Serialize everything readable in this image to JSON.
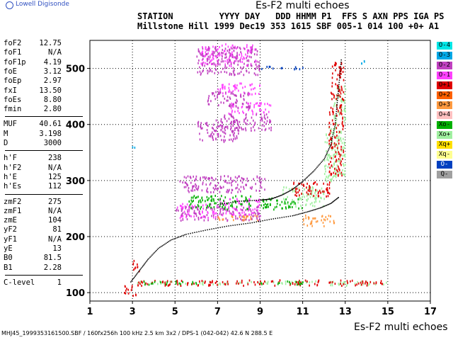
{
  "logo": {
    "text": "Lowell Digisonde"
  },
  "title": "Es-F2 multi echoes",
  "header": {
    "line1": "STATION         YYYY DAY   DDD HHMM P1  FFS S AXN PPS IGA PS",
    "line2": "Millstone Hill 1999 Dec19 353 1615 SBF 005-1 014 100 +0+ A1"
  },
  "parameters": [
    [
      {
        "k": "foF2",
        "v": "12.75"
      },
      {
        "k": "foF1",
        "v": "N/A"
      },
      {
        "k": "foF1p",
        "v": "4.19"
      },
      {
        "k": "foE",
        "v": "3.12"
      },
      {
        "k": "foEp",
        "v": "2.97"
      },
      {
        "k": "fxI",
        "v": "13.50"
      },
      {
        "k": "foEs",
        "v": "8.80"
      },
      {
        "k": "fmin",
        "v": "2.80"
      }
    ],
    [
      {
        "k": "MUF",
        "v": "40.61"
      },
      {
        "k": "M",
        "v": "3.198"
      },
      {
        "k": "D",
        "v": "3000"
      }
    ],
    [
      {
        "k": "h'F",
        "v": "238"
      },
      {
        "k": "h'F2",
        "v": "N/A"
      },
      {
        "k": "h'E",
        "v": "125"
      },
      {
        "k": "h'Es",
        "v": "112"
      }
    ],
    [
      {
        "k": "zmF2",
        "v": "275"
      },
      {
        "k": "zmF1",
        "v": "N/A"
      },
      {
        "k": "zmE",
        "v": "104"
      },
      {
        "k": "yF2",
        "v": "81"
      },
      {
        "k": "yF1",
        "v": "N/A"
      },
      {
        "k": "yE",
        "v": "13"
      },
      {
        "k": "B0",
        "v": "81.5"
      },
      {
        "k": "B1",
        "v": "2.28"
      }
    ],
    [
      {
        "k": "C-level",
        "v": "1"
      }
    ]
  ],
  "legend": [
    {
      "label": "O-4",
      "color": "#00e6e6"
    },
    {
      "label": "O-3",
      "color": "#00a8e6"
    },
    {
      "label": "O-2",
      "color": "#c040c0"
    },
    {
      "label": "O-1",
      "color": "#ff40ff"
    },
    {
      "label": "O+1",
      "color": "#e00000"
    },
    {
      "label": "O+2",
      "color": "#ff6000"
    },
    {
      "label": "O+3",
      "color": "#ff9a40"
    },
    {
      "label": "O+4",
      "color": "#ffc0c0"
    },
    {
      "label": "Xo-",
      "color": "#00b000"
    },
    {
      "label": "Xo+",
      "color": "#a0f0a0"
    },
    {
      "label": "Xq+",
      "color": "#ffe000"
    },
    {
      "label": "Xq-",
      "color": "#ffff90"
    },
    {
      "label": "O-",
      "color": "#0040c0"
    },
    {
      "label": "Q-",
      "color": "#a0a0a0"
    }
  ],
  "footer": "MHJ45_1999353161500.SBF / 160fx256h 100 kHz 2.5 km 3x2 / DPS-1 (042-042) 42.6 N 288.5 E",
  "chart_data": {
    "type": "scatter",
    "title": "Es-F2 multi echoes",
    "xlabel": "Es-F2 multi echoes",
    "ylabel": "",
    "xlim": [
      1,
      17
    ],
    "ylim": [
      85,
      550
    ],
    "xticks": [
      1,
      3,
      5,
      7,
      9,
      11,
      13,
      15,
      17
    ],
    "yticks": [
      100,
      200,
      300,
      400,
      500
    ],
    "grid": true,
    "series": [
      {
        "name": "Xo+",
        "color": "#a0f0a0",
        "ranges": [
          [
            3.0,
            5.0,
            116,
            122
          ],
          [
            5.0,
            8.0,
            116,
            122
          ],
          [
            8.0,
            10.0,
            116,
            122
          ],
          [
            10.0,
            12.0,
            116,
            122
          ],
          [
            12.0,
            15.0,
            114,
            122
          ],
          [
            10.0,
            12.0,
            255,
            290
          ],
          [
            12.0,
            12.6,
            300,
            400
          ],
          [
            12.4,
            13.0,
            310,
            470
          ]
        ]
      },
      {
        "name": "O+1",
        "color": "#e00000",
        "ranges": [
          [
            2.6,
            3.2,
            95,
            115
          ],
          [
            3.2,
            6.0,
            114,
            124
          ],
          [
            6.0,
            9.2,
            114,
            124
          ],
          [
            9.4,
            11.8,
            114,
            124
          ],
          [
            12.2,
            14.9,
            114,
            124
          ],
          [
            10.5,
            12.3,
            272,
            300
          ],
          [
            12.2,
            12.9,
            310,
            430
          ],
          [
            12.3,
            12.9,
            430,
            520
          ],
          [
            2.9,
            3.3,
            140,
            160
          ]
        ]
      },
      {
        "name": "O-1",
        "color": "#ff40ff",
        "ranges": [
          [
            5.0,
            7.0,
            235,
            260
          ],
          [
            7.0,
            9.0,
            240,
            270
          ],
          [
            6.2,
            8.8,
            505,
            545
          ],
          [
            7.0,
            9.0,
            455,
            475
          ],
          [
            7.5,
            9.5,
            420,
            440
          ]
        ]
      },
      {
        "name": "O-2",
        "color": "#c040c0",
        "ranges": [
          [
            5.0,
            9.0,
            230,
            255
          ],
          [
            6.0,
            8.0,
            370,
            410
          ],
          [
            6.5,
            8.5,
            430,
            460
          ],
          [
            6.0,
            9.0,
            490,
            540
          ],
          [
            5.2,
            9.2,
            280,
            310
          ],
          [
            7.0,
            9.5,
            390,
            420
          ]
        ]
      },
      {
        "name": "Xo-",
        "color": "#00b000",
        "ranges": [
          [
            5.6,
            8.6,
            250,
            275
          ],
          [
            9.0,
            11.0,
            250,
            270
          ],
          [
            3.5,
            6.0,
            116,
            122
          ],
          [
            9.0,
            11.0,
            116,
            122
          ]
        ]
      },
      {
        "name": "O+3",
        "color": "#ff9a40",
        "ranges": [
          [
            7.0,
            9.0,
            230,
            240
          ],
          [
            11.0,
            12.5,
            220,
            240
          ]
        ]
      },
      {
        "name": "O-",
        "color": "#0040c0",
        "ranges": [
          [
            9.0,
            11.0,
            500,
            505
          ]
        ]
      },
      {
        "name": "O-3",
        "color": "#00a8e6",
        "ranges": [
          [
            13.7,
            13.9,
            510,
            525
          ],
          [
            2.9,
            3.1,
            360,
            370
          ]
        ]
      },
      {
        "name": "trace",
        "color": "#000000",
        "points": [
          [
            2.9,
            120
          ],
          [
            3.3,
            140
          ],
          [
            3.7,
            160
          ],
          [
            4.2,
            180
          ],
          [
            4.8,
            195
          ],
          [
            5.5,
            205
          ],
          [
            6.5,
            213
          ],
          [
            7.5,
            220
          ],
          [
            8.5,
            225
          ],
          [
            9.5,
            232
          ],
          [
            10.5,
            238
          ],
          [
            11.2,
            245
          ],
          [
            11.8,
            252
          ],
          [
            12.3,
            260
          ],
          [
            12.7,
            272
          ]
        ]
      },
      {
        "name": "trace-F2",
        "color": "#000000",
        "points": [
          [
            7.0,
            258
          ],
          [
            8.0,
            264
          ],
          [
            9.0,
            266
          ],
          [
            9.5,
            268
          ],
          [
            10.0,
            275
          ],
          [
            10.5,
            285
          ],
          [
            11.0,
            300
          ],
          [
            11.5,
            318
          ],
          [
            12.0,
            340
          ],
          [
            12.3,
            365
          ],
          [
            12.5,
            400
          ],
          [
            12.6,
            440
          ],
          [
            12.7,
            480
          ],
          [
            12.8,
            520
          ]
        ]
      }
    ]
  }
}
